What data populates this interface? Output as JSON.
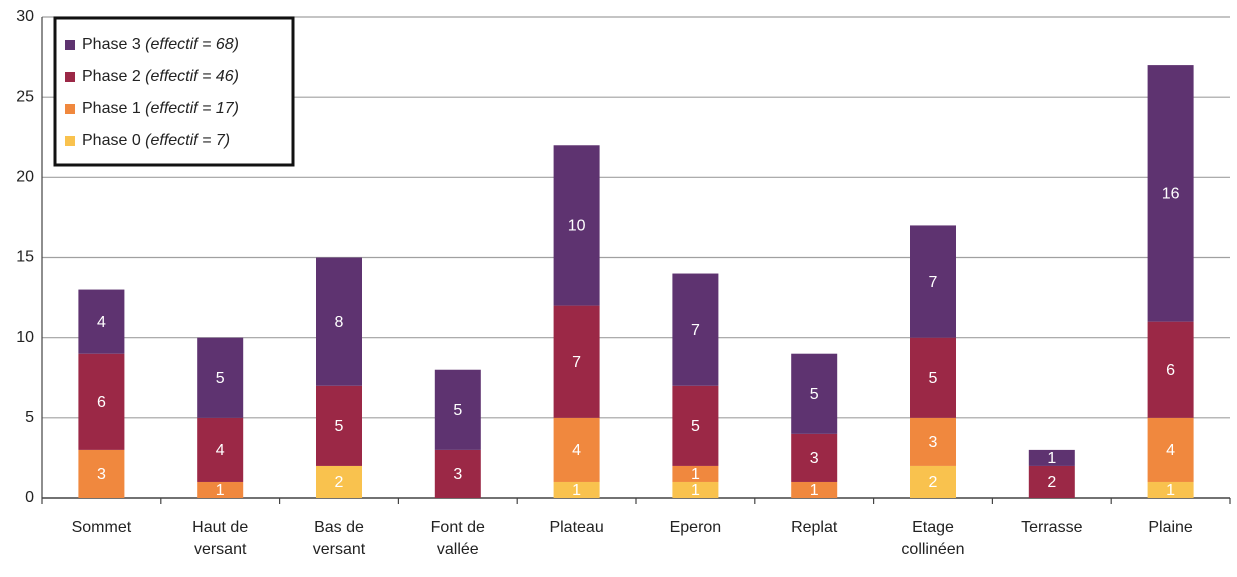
{
  "chart_data": {
    "type": "stacked_bar",
    "categories": [
      "Sommet",
      "Haut de versant",
      "Bas de versant",
      "Font de vallée",
      "Plateau",
      "Eperon",
      "Replat",
      "Etage collinéen",
      "Terrasse",
      "Plaine"
    ],
    "series": [
      {
        "name": "Phase 0 (effectif = 7)",
        "color": "#f9c24e",
        "values": [
          0,
          0,
          2,
          0,
          1,
          1,
          0,
          2,
          0,
          1
        ]
      },
      {
        "name": "Phase 1 (effectif = 17)",
        "color": "#f0883e",
        "values": [
          3,
          1,
          0,
          0,
          4,
          1,
          1,
          3,
          0,
          4
        ]
      },
      {
        "name": "Phase 2 (effectif = 46)",
        "color": "#9b2846",
        "values": [
          6,
          4,
          5,
          3,
          7,
          5,
          3,
          5,
          2,
          6
        ]
      },
      {
        "name": "Phase 3 (effectif = 68)",
        "color": "#5e3370",
        "values": [
          4,
          5,
          8,
          5,
          10,
          7,
          5,
          7,
          1,
          16
        ]
      }
    ],
    "ylim": [
      0,
      30
    ],
    "yticks": [
      0,
      5,
      10,
      15,
      20,
      25,
      30
    ],
    "grid": true,
    "legend": "top-left"
  }
}
